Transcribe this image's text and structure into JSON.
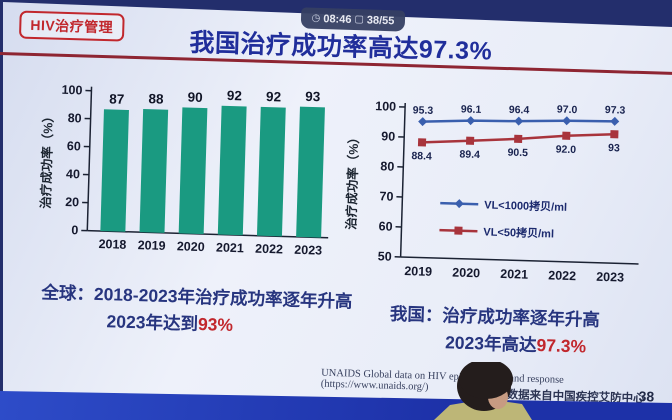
{
  "overlay": {
    "time": "08:46",
    "counter": "38/55"
  },
  "header": {
    "badge": "HIV治疗管理",
    "title": "我国治疗成功率高达97.3%"
  },
  "captions": {
    "left": {
      "line1": "全球：2018-2023年治疗成功率逐年升高",
      "line2_prefix": "2023年达到",
      "line2_highlight": "93%"
    },
    "right": {
      "line1": "我国：治疗成功率逐年升高",
      "line2_prefix": "2023年高达",
      "line2_highlight": "97.3%"
    }
  },
  "source_note": "UNAIDS Global data on HIV epidemiology and response (https://www.unaids.org/)",
  "footer": {
    "credit": "数据来自中国疾控艾防中心",
    "page": "38"
  },
  "colors": {
    "accent_red": "#c1272d",
    "title_blue": "#202e9b",
    "band_blue": "#2137b8",
    "bar_teal": "#1a9a81",
    "line_blue": "#3a5fae",
    "line_red": "#a8343c"
  },
  "chart_data": [
    {
      "type": "bar",
      "categories": [
        "2018",
        "2019",
        "2020",
        "2021",
        "2022",
        "2023"
      ],
      "values": [
        87,
        88,
        90,
        92,
        92,
        93
      ],
      "labels": [
        "87",
        "88",
        "90",
        "92",
        "92",
        "93"
      ],
      "title": "",
      "xlabel": "",
      "ylabel": "治疗成功率（%）",
      "yticks": [
        0,
        20,
        40,
        60,
        80,
        100
      ],
      "ylim": [
        0,
        100
      ],
      "grid": false,
      "bar_color": "#1a9a81"
    },
    {
      "type": "line",
      "x": [
        "2019",
        "2020",
        "2021",
        "2022",
        "2023"
      ],
      "series": [
        {
          "name": "VL<1000拷贝/ml",
          "values": [
            95.3,
            96.1,
            96.4,
            97.0,
            97.3
          ],
          "labels": [
            "95.3",
            "96.1",
            "96.4",
            "97.0",
            "97.3"
          ],
          "color": "#3a5fae",
          "marker": "diamond",
          "label_position": "above"
        },
        {
          "name": "VL<50拷贝/ml",
          "values": [
            88.4,
            89.4,
            90.5,
            92.0,
            93
          ],
          "labels": [
            "88.4",
            "89.4",
            "90.5",
            "92.0",
            "93"
          ],
          "color": "#a8343c",
          "marker": "square",
          "label_position": "below"
        }
      ],
      "title": "",
      "xlabel": "",
      "ylabel": "治疗成功率（%）",
      "yticks": [
        50,
        60,
        70,
        80,
        90,
        100
      ],
      "ylim": [
        50,
        100
      ],
      "grid": false,
      "legend_position": "inside-left"
    }
  ]
}
